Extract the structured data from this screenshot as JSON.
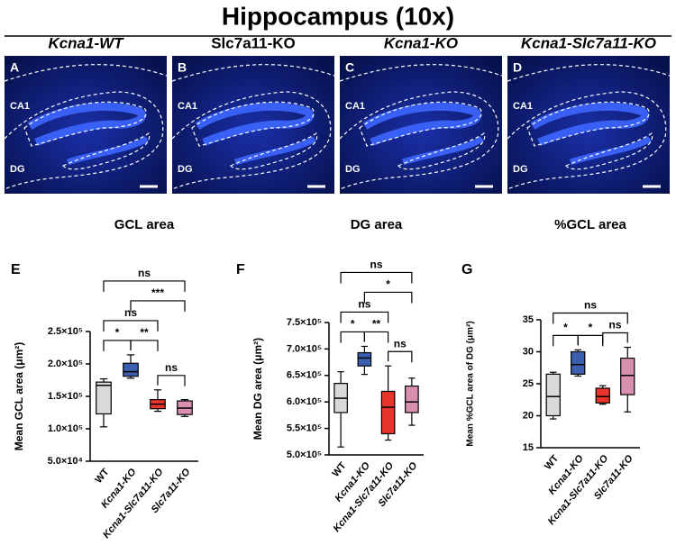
{
  "title": "Hippocampus (10x)",
  "micrographs": [
    {
      "letter": "A",
      "title": "Kcna1-WT",
      "regions": [
        "CA1",
        "DG"
      ]
    },
    {
      "letter": "B",
      "title": "Slc7a11-KO",
      "regions": [
        "CA1",
        "DG"
      ]
    },
    {
      "letter": "C",
      "title": "Kcna1-KO",
      "regions": [
        "CA1",
        "DG"
      ]
    },
    {
      "letter": "D",
      "title": "Kcna1-Slc7a11-KO",
      "regions": [
        "CA1",
        "DG"
      ]
    }
  ],
  "chart_data": [
    {
      "type": "box",
      "panel": "E",
      "title": "GCL area",
      "y_label": "Mean GCL area (μm²)",
      "categories": [
        "WT",
        "Kcna1-KO",
        "Kcna1-Slc7a11-KO",
        "Slc7a11-KO"
      ],
      "colors": [
        "#d9d9d9",
        "#3a5fb0",
        "#e8352c",
        "#d990b0"
      ],
      "boxes": [
        {
          "min": 103000,
          "q1": 123000,
          "median": 167000,
          "q3": 172000,
          "max": 177000
        },
        {
          "min": 178000,
          "q1": 181000,
          "median": 188000,
          "q3": 201000,
          "max": 214000
        },
        {
          "min": 127000,
          "q1": 131000,
          "median": 138000,
          "q3": 145000,
          "max": 160000
        },
        {
          "min": 119000,
          "q1": 122000,
          "median": 132000,
          "q3": 143000,
          "max": 145000
        }
      ],
      "ylim": [
        50000,
        250000
      ],
      "yticks": [
        {
          "value": 50000,
          "label": "5.0×10⁴"
        },
        {
          "value": 100000,
          "label": "1.0×10⁵"
        },
        {
          "value": 150000,
          "label": "1.5×10⁵"
        },
        {
          "value": 200000,
          "label": "2.0×10⁵"
        },
        {
          "value": 250000,
          "label": "2.5×10⁵"
        }
      ],
      "comparisons": [
        {
          "from": 0,
          "to": 1,
          "label": "*"
        },
        {
          "from": 1,
          "to": 2,
          "label": "**"
        },
        {
          "from": 2,
          "to": 3,
          "label": "ns"
        },
        {
          "from": 0,
          "to": 2,
          "label": "ns"
        },
        {
          "from": 1,
          "to": 3,
          "label": "***"
        },
        {
          "from": 0,
          "to": 3,
          "label": "ns"
        }
      ]
    },
    {
      "type": "box",
      "panel": "F",
      "title": "DG area",
      "y_label": "Mean DG area (μm²)",
      "categories": [
        "WT",
        "Kcna1-KO",
        "Kcna1-Slc7a11-KO",
        "Slc7a11-KO"
      ],
      "colors": [
        "#d9d9d9",
        "#3a5fb0",
        "#e8352c",
        "#d990b0"
      ],
      "boxes": [
        {
          "min": 515000,
          "q1": 580000,
          "median": 607000,
          "q3": 635000,
          "max": 657000
        },
        {
          "min": 652000,
          "q1": 668000,
          "median": 683000,
          "q3": 693000,
          "max": 705000
        },
        {
          "min": 528000,
          "q1": 540000,
          "median": 590000,
          "q3": 620000,
          "max": 668000
        },
        {
          "min": 556000,
          "q1": 580000,
          "median": 600000,
          "q3": 630000,
          "max": 645000
        }
      ],
      "ylim": [
        500000,
        750000
      ],
      "yticks": [
        {
          "value": 500000,
          "label": "5.0×10⁵"
        },
        {
          "value": 550000,
          "label": "5.5×10⁵"
        },
        {
          "value": 600000,
          "label": "6.0×10⁵"
        },
        {
          "value": 650000,
          "label": "6.5×10⁵"
        },
        {
          "value": 700000,
          "label": "7.0×10⁵"
        },
        {
          "value": 750000,
          "label": "7.5×10⁵"
        }
      ],
      "comparisons": [
        {
          "from": 0,
          "to": 1,
          "label": "*"
        },
        {
          "from": 1,
          "to": 2,
          "label": "**"
        },
        {
          "from": 2,
          "to": 3,
          "label": "ns"
        },
        {
          "from": 0,
          "to": 2,
          "label": "ns"
        },
        {
          "from": 1,
          "to": 3,
          "label": "*"
        },
        {
          "from": 0,
          "to": 3,
          "label": "ns"
        }
      ]
    },
    {
      "type": "box",
      "panel": "G",
      "title": "%GCL area",
      "y_label": "Mean %GCL area of DG (μm²)",
      "categories": [
        "WT",
        "Kcna1-KO",
        "Kcna1-Slc7a11-KO",
        "Slc7a11-KO"
      ],
      "colors": [
        "#d9d9d9",
        "#3a5fb0",
        "#e8352c",
        "#d990b0"
      ],
      "boxes": [
        {
          "min": 19.5,
          "q1": 20,
          "median": 23,
          "q3": 26.5,
          "max": 26.8
        },
        {
          "min": 26.2,
          "q1": 26.5,
          "median": 28,
          "q3": 30,
          "max": 30.3
        },
        {
          "min": 21.8,
          "q1": 22,
          "median": 23,
          "q3": 24.3,
          "max": 24.7
        },
        {
          "min": 20.6,
          "q1": 23.3,
          "median": 26.3,
          "q3": 29,
          "max": 30.7
        }
      ],
      "ylim": [
        15,
        35
      ],
      "yticks": [
        15,
        20,
        25,
        30,
        35
      ],
      "comparisons": [
        {
          "from": 0,
          "to": 1,
          "label": "*"
        },
        {
          "from": 1,
          "to": 2,
          "label": "*"
        },
        {
          "from": 2,
          "to": 3,
          "label": "ns"
        },
        {
          "from": 0,
          "to": 3,
          "label": "ns"
        }
      ]
    }
  ]
}
